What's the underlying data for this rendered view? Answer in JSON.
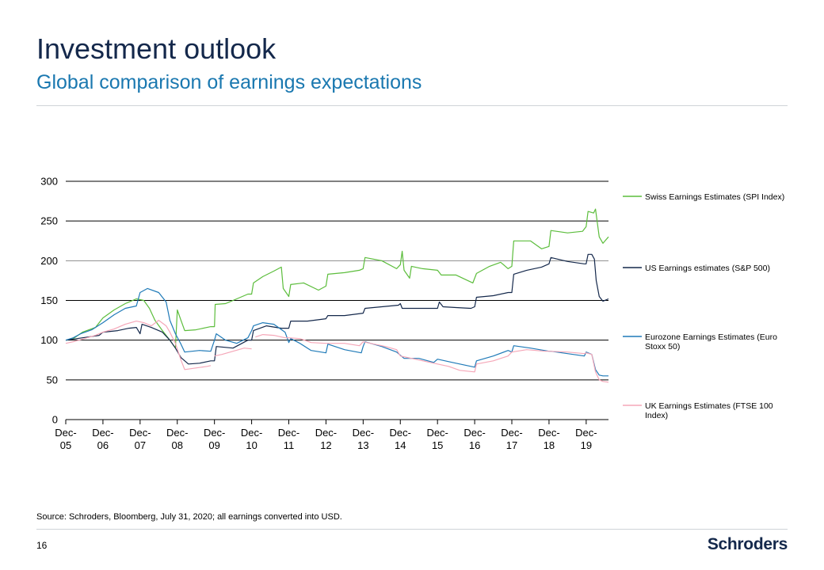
{
  "header": {
    "title": "Investment outlook",
    "subtitle": "Global comparison of earnings expectations"
  },
  "footer": {
    "source": "Source: Schroders, Bloomberg, July 31, 2020; all earnings converted into USD.",
    "page_number": "16",
    "logo_text": "Schroders"
  },
  "colors": {
    "title": "#14284b",
    "subtitle": "#1a78b0"
  },
  "chart_data": {
    "type": "line",
    "title": "",
    "xlabel": "",
    "ylabel": "",
    "ylim": [
      0,
      300
    ],
    "yticks": [
      0,
      50,
      100,
      150,
      200,
      250,
      300
    ],
    "xlim": [
      0,
      14.6
    ],
    "x_ticks": [
      {
        "x": 0,
        "top": "Dec-",
        "bottom": "05"
      },
      {
        "x": 1,
        "top": "Dec-",
        "bottom": "06"
      },
      {
        "x": 2,
        "top": "Dec-",
        "bottom": "07"
      },
      {
        "x": 3,
        "top": "Dec-",
        "bottom": "08"
      },
      {
        "x": 4,
        "top": "Dec-",
        "bottom": "09"
      },
      {
        "x": 5,
        "top": "Dec-",
        "bottom": "10"
      },
      {
        "x": 6,
        "top": "Dec-",
        "bottom": "11"
      },
      {
        "x": 7,
        "top": "Dec-",
        "bottom": "12"
      },
      {
        "x": 8,
        "top": "Dec-",
        "bottom": "13"
      },
      {
        "x": 9,
        "top": "Dec-",
        "bottom": "14"
      },
      {
        "x": 10,
        "top": "Dec-",
        "bottom": "15"
      },
      {
        "x": 11,
        "top": "Dec-",
        "bottom": "16"
      },
      {
        "x": 12,
        "top": "Dec-",
        "bottom": "17"
      },
      {
        "x": 13,
        "top": "Dec-",
        "bottom": "18"
      },
      {
        "x": 14,
        "top": "Dec-",
        "bottom": "19"
      }
    ],
    "legend_position": "right",
    "series": [
      {
        "name": "Swiss Earnings Estimates (SPI Index)",
        "legend_lines": [
          "Swiss Earnings Estimates (SPI Index)"
        ],
        "color": "#5cbd3c",
        "points": [
          [
            0,
            100
          ],
          [
            0.2,
            102
          ],
          [
            0.45,
            110
          ],
          [
            0.8,
            116
          ],
          [
            1.0,
            128
          ],
          [
            1.3,
            138
          ],
          [
            1.6,
            146
          ],
          [
            1.9,
            152
          ],
          [
            2.1,
            150
          ],
          [
            2.25,
            140
          ],
          [
            2.4,
            125
          ],
          [
            2.6,
            112
          ],
          [
            2.8,
            100
          ],
          [
            2.95,
            90
          ],
          [
            3.0,
            138
          ],
          [
            3.1,
            125
          ],
          [
            3.2,
            112
          ],
          [
            3.5,
            113
          ],
          [
            3.9,
            117
          ],
          [
            4.0,
            117
          ],
          [
            4.02,
            145
          ],
          [
            4.3,
            146
          ],
          [
            4.6,
            152
          ],
          [
            4.9,
            158
          ],
          [
            5.0,
            158
          ],
          [
            5.05,
            172
          ],
          [
            5.3,
            180
          ],
          [
            5.6,
            187
          ],
          [
            5.8,
            192
          ],
          [
            5.85,
            165
          ],
          [
            6.0,
            155
          ],
          [
            6.05,
            170
          ],
          [
            6.4,
            172
          ],
          [
            6.8,
            163
          ],
          [
            7.0,
            168
          ],
          [
            7.05,
            183
          ],
          [
            7.5,
            185
          ],
          [
            7.9,
            188
          ],
          [
            8.0,
            190
          ],
          [
            8.05,
            204
          ],
          [
            8.5,
            200
          ],
          [
            8.9,
            190
          ],
          [
            9.0,
            195
          ],
          [
            9.05,
            212
          ],
          [
            9.1,
            188
          ],
          [
            9.25,
            178
          ],
          [
            9.3,
            193
          ],
          [
            9.6,
            190
          ],
          [
            10.0,
            188
          ],
          [
            10.1,
            182
          ],
          [
            10.5,
            182
          ],
          [
            10.95,
            172
          ],
          [
            11.05,
            184
          ],
          [
            11.4,
            193
          ],
          [
            11.7,
            198
          ],
          [
            11.9,
            190
          ],
          [
            12.0,
            193
          ],
          [
            12.05,
            225
          ],
          [
            12.5,
            225
          ],
          [
            12.8,
            215
          ],
          [
            13.0,
            218
          ],
          [
            13.05,
            238
          ],
          [
            13.5,
            235
          ],
          [
            13.9,
            237
          ],
          [
            14.0,
            243
          ],
          [
            14.05,
            262
          ],
          [
            14.2,
            260
          ],
          [
            14.25,
            265
          ],
          [
            14.35,
            230
          ],
          [
            14.45,
            222
          ],
          [
            14.6,
            230
          ]
        ]
      },
      {
        "name": "US Earnings estimates (S&P 500)",
        "legend_lines": [
          "US Earnings estimates (S&P 500)"
        ],
        "color": "#14284b",
        "points": [
          [
            0,
            100
          ],
          [
            0.3,
            102
          ],
          [
            0.6,
            104
          ],
          [
            0.9,
            106
          ],
          [
            1.0,
            110
          ],
          [
            1.4,
            112
          ],
          [
            1.7,
            115
          ],
          [
            1.9,
            116
          ],
          [
            2.0,
            108
          ],
          [
            2.05,
            120
          ],
          [
            2.3,
            116
          ],
          [
            2.6,
            110
          ],
          [
            2.8,
            100
          ],
          [
            2.95,
            90
          ],
          [
            3.1,
            78
          ],
          [
            3.3,
            70
          ],
          [
            3.6,
            71
          ],
          [
            3.9,
            74
          ],
          [
            4.0,
            74
          ],
          [
            4.05,
            92
          ],
          [
            4.5,
            90
          ],
          [
            4.9,
            100
          ],
          [
            5.0,
            100
          ],
          [
            5.05,
            112
          ],
          [
            5.4,
            118
          ],
          [
            5.8,
            115
          ],
          [
            6.0,
            115
          ],
          [
            6.05,
            124
          ],
          [
            6.5,
            124
          ],
          [
            7.0,
            127
          ],
          [
            7.05,
            131
          ],
          [
            7.5,
            131
          ],
          [
            8.0,
            134
          ],
          [
            8.05,
            140
          ],
          [
            8.5,
            142
          ],
          [
            8.95,
            144
          ],
          [
            9.0,
            146
          ],
          [
            9.05,
            140
          ],
          [
            9.5,
            140
          ],
          [
            10.0,
            140
          ],
          [
            10.05,
            148
          ],
          [
            10.15,
            142
          ],
          [
            10.5,
            141
          ],
          [
            10.9,
            140
          ],
          [
            11.0,
            142
          ],
          [
            11.05,
            154
          ],
          [
            11.5,
            156
          ],
          [
            11.9,
            160
          ],
          [
            12.0,
            160
          ],
          [
            12.05,
            183
          ],
          [
            12.4,
            188
          ],
          [
            12.8,
            192
          ],
          [
            13.0,
            196
          ],
          [
            13.05,
            204
          ],
          [
            13.5,
            199
          ],
          [
            13.95,
            196
          ],
          [
            14.0,
            196
          ],
          [
            14.05,
            208
          ],
          [
            14.15,
            208
          ],
          [
            14.22,
            202
          ],
          [
            14.27,
            175
          ],
          [
            14.35,
            155
          ],
          [
            14.45,
            149
          ],
          [
            14.6,
            152
          ]
        ]
      },
      {
        "name": "Eurozone Earnings Estimates (Euro Stoxx 50)",
        "legend_lines": [
          "Eurozone Earnings Estimates (Euro",
          "Stoxx 50)"
        ],
        "color": "#1f7ab8",
        "points": [
          [
            0,
            100
          ],
          [
            0.2,
            103
          ],
          [
            0.4,
            108
          ],
          [
            0.7,
            113
          ],
          [
            1.0,
            122
          ],
          [
            1.3,
            132
          ],
          [
            1.6,
            140
          ],
          [
            1.9,
            143
          ],
          [
            2.0,
            160
          ],
          [
            2.2,
            165
          ],
          [
            2.5,
            160
          ],
          [
            2.7,
            148
          ],
          [
            2.8,
            125
          ],
          [
            2.95,
            108
          ],
          [
            3.1,
            95
          ],
          [
            3.2,
            85
          ],
          [
            3.6,
            87
          ],
          [
            3.9,
            86
          ],
          [
            4.0,
            100
          ],
          [
            4.05,
            108
          ],
          [
            4.3,
            100
          ],
          [
            4.6,
            96
          ],
          [
            4.9,
            103
          ],
          [
            5.0,
            112
          ],
          [
            5.05,
            118
          ],
          [
            5.3,
            122
          ],
          [
            5.6,
            120
          ],
          [
            5.9,
            110
          ],
          [
            6.0,
            97
          ],
          [
            6.05,
            102
          ],
          [
            6.3,
            96
          ],
          [
            6.6,
            87
          ],
          [
            7.0,
            84
          ],
          [
            7.05,
            95
          ],
          [
            7.5,
            88
          ],
          [
            7.95,
            84
          ],
          [
            8.0,
            92
          ],
          [
            8.05,
            98
          ],
          [
            8.5,
            92
          ],
          [
            8.9,
            85
          ],
          [
            9.1,
            77
          ],
          [
            9.5,
            77
          ],
          [
            9.9,
            72
          ],
          [
            10.0,
            76
          ],
          [
            10.4,
            72
          ],
          [
            10.8,
            68
          ],
          [
            11.0,
            66
          ],
          [
            11.05,
            74
          ],
          [
            11.5,
            80
          ],
          [
            11.9,
            87
          ],
          [
            12.0,
            85
          ],
          [
            12.05,
            93
          ],
          [
            12.5,
            90
          ],
          [
            13.0,
            86
          ],
          [
            13.05,
            86
          ],
          [
            13.5,
            83
          ],
          [
            13.95,
            80
          ],
          [
            14.0,
            85
          ],
          [
            14.15,
            82
          ],
          [
            14.25,
            63
          ],
          [
            14.35,
            56
          ],
          [
            14.45,
            55
          ],
          [
            14.6,
            55
          ]
        ]
      },
      {
        "name": "UK Earnings Estimates (FTSE 100 Index)",
        "legend_lines": [
          "UK Earnings Estimates (FTSE 100",
          "Index)"
        ],
        "color": "#f5a7b8",
        "points": [
          [
            0,
            96
          ],
          [
            0.2,
            98
          ],
          [
            0.5,
            102
          ],
          [
            0.8,
            106
          ],
          [
            1.0,
            110
          ],
          [
            1.3,
            114
          ],
          [
            1.6,
            120
          ],
          [
            1.9,
            124
          ],
          [
            2.1,
            122
          ],
          [
            2.3,
            118
          ],
          [
            2.5,
            125
          ],
          [
            2.7,
            118
          ],
          [
            2.8,
            110
          ],
          [
            2.95,
            96
          ],
          [
            3.1,
            75
          ],
          [
            3.2,
            63
          ],
          [
            3.5,
            65
          ],
          [
            3.8,
            67
          ],
          [
            3.9,
            68
          ],
          [
            null,
            null
          ],
          [
            4.0,
            80
          ],
          [
            4.2,
            82
          ],
          [
            4.5,
            86
          ],
          [
            4.8,
            90
          ],
          [
            5.0,
            89
          ],
          [
            null,
            null
          ],
          [
            5.1,
            104
          ],
          [
            5.3,
            107
          ],
          [
            5.6,
            106
          ],
          [
            5.9,
            103
          ],
          [
            6.0,
            103
          ],
          [
            6.3,
            102
          ],
          [
            6.6,
            97
          ],
          [
            7.0,
            96
          ],
          [
            7.5,
            96
          ],
          [
            7.9,
            93
          ],
          [
            8.0,
            98
          ],
          [
            8.3,
            95
          ],
          [
            8.6,
            92
          ],
          [
            8.9,
            88
          ],
          [
            9.0,
            80
          ],
          [
            9.4,
            76
          ],
          [
            9.8,
            72
          ],
          [
            10.0,
            70
          ],
          [
            10.3,
            67
          ],
          [
            10.6,
            62
          ],
          [
            11.0,
            60
          ],
          [
            11.05,
            70
          ],
          [
            11.5,
            74
          ],
          [
            11.9,
            80
          ],
          [
            12.0,
            85
          ],
          [
            12.4,
            88
          ],
          [
            12.9,
            86
          ],
          [
            13.0,
            86
          ],
          [
            13.5,
            85
          ],
          [
            13.95,
            83
          ],
          [
            14.0,
            84
          ],
          [
            14.15,
            82
          ],
          [
            14.25,
            60
          ],
          [
            14.35,
            50
          ],
          [
            14.45,
            48
          ],
          [
            14.6,
            47
          ]
        ]
      }
    ]
  }
}
